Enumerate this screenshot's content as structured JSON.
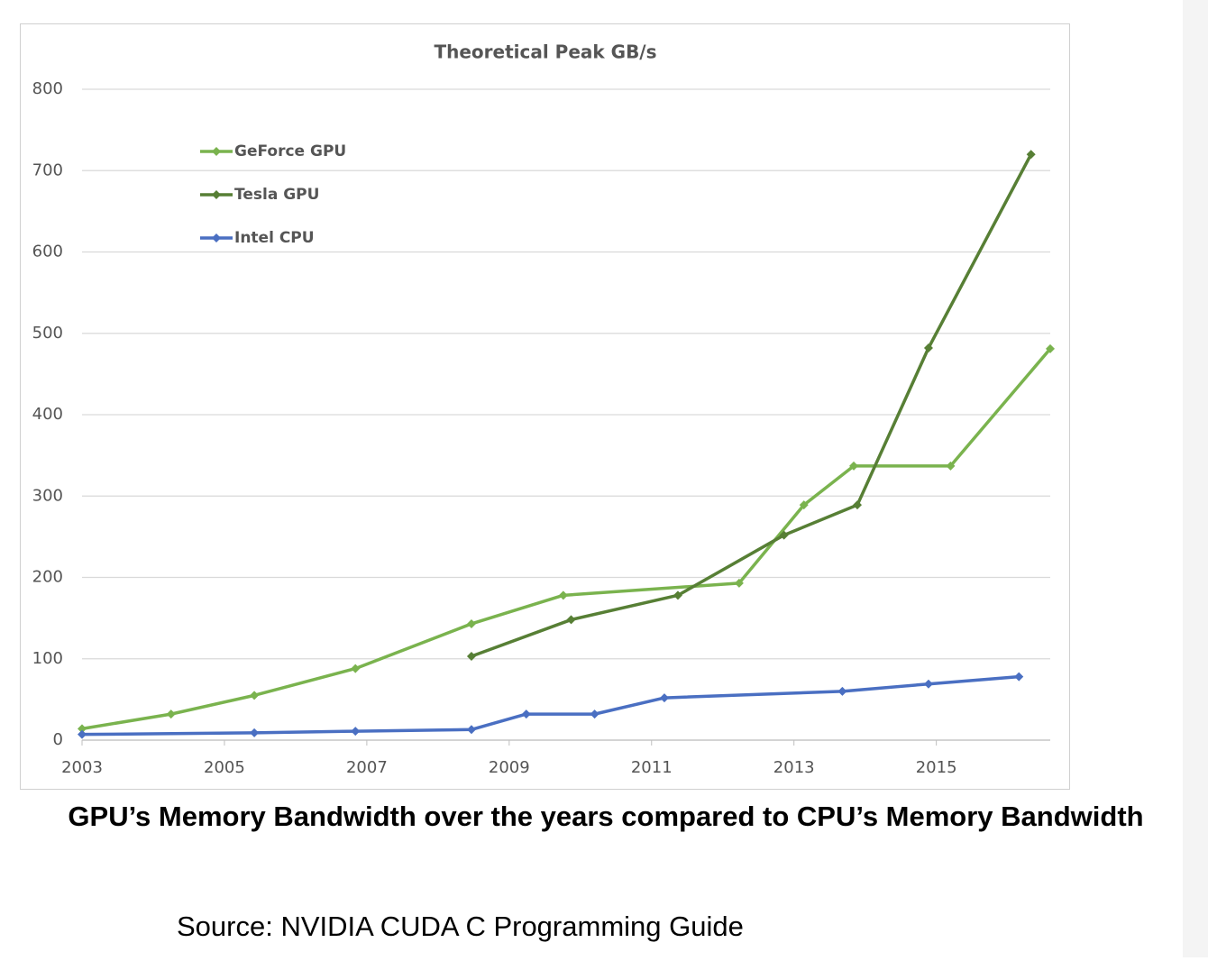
{
  "chart_data": {
    "type": "line",
    "title": "Theoretical  Peak GB/s",
    "xlim": [
      2003,
      2016.6
    ],
    "xticks": [
      2003,
      2005,
      2007,
      2009,
      2011,
      2013,
      2015
    ],
    "ylim": [
      0,
      800
    ],
    "yticks": [
      0,
      100,
      200,
      300,
      400,
      500,
      600,
      700,
      800
    ],
    "grid": true,
    "legend": "upper left",
    "series": [
      {
        "name": "GeForce GPU",
        "color": "#7ab34e",
        "x": [
          2003,
          2004.25,
          2005.42,
          2006.84,
          2008.47,
          2009.76,
          2012.23,
          2013.14,
          2013.84,
          2015.2,
          2016.6
        ],
        "values": [
          14,
          32,
          55,
          88,
          143,
          178,
          193,
          289,
          337,
          337,
          481
        ]
      },
      {
        "name": "Tesla GPU",
        "color": "#577f35",
        "x": [
          2008.47,
          2009.87,
          2011.37,
          2012.86,
          2013.89,
          2014.89,
          2016.33
        ],
        "values": [
          103,
          148,
          178,
          252,
          289,
          482,
          720
        ]
      },
      {
        "name": "Intel CPU",
        "color": "#4a6fc2",
        "x": [
          2003,
          2005.42,
          2006.84,
          2008.47,
          2009.24,
          2010.2,
          2011.18,
          2013.68,
          2014.89,
          2016.16
        ],
        "values": [
          7,
          9,
          11,
          13,
          32,
          32,
          52,
          60,
          69,
          78
        ]
      }
    ]
  },
  "caption": "GPU’s Memory Bandwidth over the years compared to CPU’s Memory Bandwidth",
  "source": "Source: NVIDIA  CUDA C Programming Guide"
}
